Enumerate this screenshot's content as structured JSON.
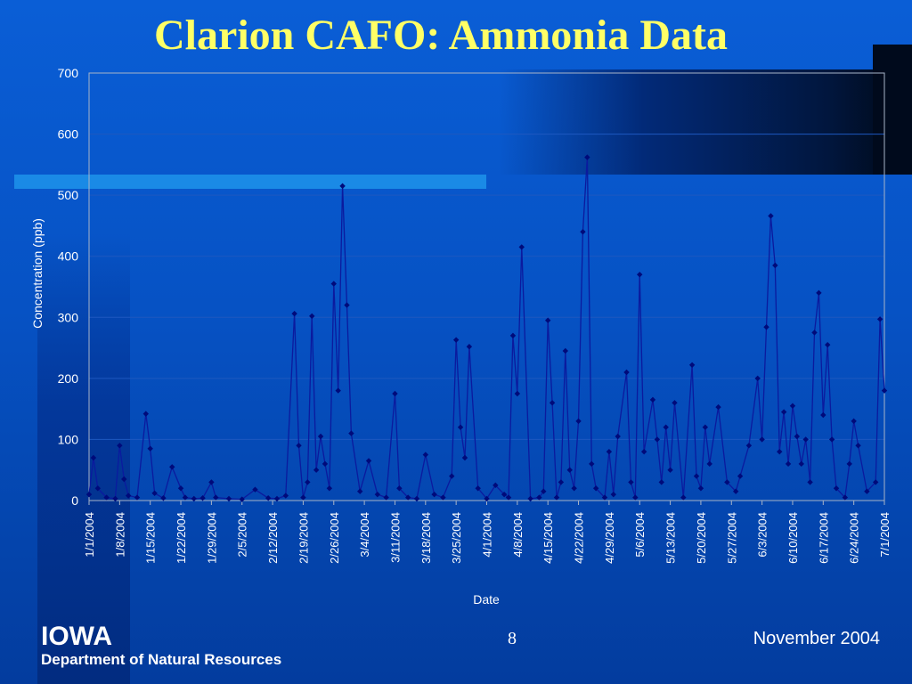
{
  "slide": {
    "title": "Clarion CAFO:  Ammonia Data",
    "footer_logo": "IOWA",
    "footer_department": "Department of Natural Resources",
    "page_number": "8",
    "date": "November 2004"
  },
  "colors": {
    "title": "#ffff66",
    "series_line": "#0b1a9e",
    "marker": "#000a7a",
    "axis_text": "#ffffff"
  },
  "chart_data": {
    "type": "line",
    "title": "",
    "xlabel": "Date",
    "ylabel": "Concentration (ppb)",
    "ylim": [
      0,
      700
    ],
    "yticks": [
      0,
      100,
      200,
      300,
      400,
      500,
      600,
      700
    ],
    "xlim": [
      "2004-01-01",
      "2004-07-01"
    ],
    "xtick_labels": [
      "1/1/2004",
      "1/8/2004",
      "1/15/2004",
      "1/22/2004",
      "1/29/2004",
      "2/5/2004",
      "2/12/2004",
      "2/19/2004",
      "2/26/2004",
      "3/4/2004",
      "3/11/2004",
      "3/18/2004",
      "3/25/2004",
      "4/1/2004",
      "4/8/2004",
      "4/15/2004",
      "4/22/2004",
      "4/29/2004",
      "5/6/2004",
      "5/13/2004",
      "5/20/2004",
      "5/27/2004",
      "6/3/2004",
      "6/10/2004",
      "6/17/2004",
      "6/24/2004",
      "7/1/2004"
    ],
    "grid": true,
    "legend": "none",
    "series": [
      {
        "marker": "diamond",
        "x": [
          "2004-01-01",
          "2004-01-02",
          "2004-01-03",
          "2004-01-05",
          "2004-01-07",
          "2004-01-08",
          "2004-01-09",
          "2004-01-10",
          "2004-01-12",
          "2004-01-14",
          "2004-01-15",
          "2004-01-16",
          "2004-01-18",
          "2004-01-20",
          "2004-01-22",
          "2004-01-23",
          "2004-01-25",
          "2004-01-27",
          "2004-01-29",
          "2004-01-30",
          "2004-02-02",
          "2004-02-05",
          "2004-02-08",
          "2004-02-11",
          "2004-02-13",
          "2004-02-15",
          "2004-02-17",
          "2004-02-18",
          "2004-02-19",
          "2004-02-20",
          "2004-02-21",
          "2004-02-22",
          "2004-02-23",
          "2004-02-24",
          "2004-02-25",
          "2004-02-26",
          "2004-02-27",
          "2004-02-28",
          "2004-02-29",
          "2004-03-01",
          "2004-03-03",
          "2004-03-05",
          "2004-03-07",
          "2004-03-09",
          "2004-03-11",
          "2004-03-12",
          "2004-03-14",
          "2004-03-16",
          "2004-03-18",
          "2004-03-20",
          "2004-03-22",
          "2004-03-24",
          "2004-03-25",
          "2004-03-26",
          "2004-03-27",
          "2004-03-28",
          "2004-03-30",
          "2004-04-01",
          "2004-04-03",
          "2004-04-05",
          "2004-04-06",
          "2004-04-07",
          "2004-04-08",
          "2004-04-09",
          "2004-04-11",
          "2004-04-13",
          "2004-04-14",
          "2004-04-15",
          "2004-04-16",
          "2004-04-17",
          "2004-04-18",
          "2004-04-19",
          "2004-04-20",
          "2004-04-21",
          "2004-04-22",
          "2004-04-23",
          "2004-04-24",
          "2004-04-25",
          "2004-04-26",
          "2004-04-28",
          "2004-04-29",
          "2004-04-30",
          "2004-05-01",
          "2004-05-03",
          "2004-05-04",
          "2004-05-05",
          "2004-05-06",
          "2004-05-07",
          "2004-05-09",
          "2004-05-10",
          "2004-05-11",
          "2004-05-12",
          "2004-05-13",
          "2004-05-14",
          "2004-05-16",
          "2004-05-18",
          "2004-05-19",
          "2004-05-20",
          "2004-05-21",
          "2004-05-22",
          "2004-05-24",
          "2004-05-26",
          "2004-05-28",
          "2004-05-29",
          "2004-05-31",
          "2004-06-02",
          "2004-06-03",
          "2004-06-04",
          "2004-06-05",
          "2004-06-06",
          "2004-06-07",
          "2004-06-08",
          "2004-06-09",
          "2004-06-10",
          "2004-06-11",
          "2004-06-12",
          "2004-06-13",
          "2004-06-14",
          "2004-06-15",
          "2004-06-16",
          "2004-06-17",
          "2004-06-18",
          "2004-06-19",
          "2004-06-20",
          "2004-06-22",
          "2004-06-23",
          "2004-06-24",
          "2004-06-25",
          "2004-06-27",
          "2004-06-29",
          "2004-06-30",
          "2004-07-01"
        ],
        "y": [
          10,
          70,
          20,
          5,
          3,
          90,
          35,
          8,
          5,
          142,
          85,
          12,
          4,
          55,
          20,
          5,
          3,
          4,
          30,
          5,
          3,
          2,
          18,
          4,
          3,
          8,
          306,
          90,
          5,
          30,
          302,
          50,
          105,
          60,
          20,
          355,
          180,
          515,
          320,
          110,
          15,
          65,
          10,
          5,
          175,
          20,
          5,
          3,
          75,
          10,
          5,
          40,
          263,
          120,
          70,
          252,
          20,
          3,
          25,
          10,
          5,
          270,
          175,
          415,
          3,
          5,
          15,
          295,
          160,
          5,
          30,
          245,
          50,
          20,
          130,
          440,
          562,
          60,
          20,
          5,
          80,
          10,
          105,
          210,
          30,
          5,
          370,
          80,
          165,
          100,
          30,
          120,
          50,
          160,
          5,
          222,
          40,
          20,
          120,
          60,
          153,
          30,
          15,
          40,
          90,
          200,
          100,
          284,
          466,
          385,
          80,
          145,
          60,
          155,
          105,
          60,
          100,
          30,
          275,
          340,
          140,
          255,
          100,
          20,
          5,
          60,
          130,
          90,
          15,
          30,
          297,
          180
        ]
      }
    ]
  }
}
